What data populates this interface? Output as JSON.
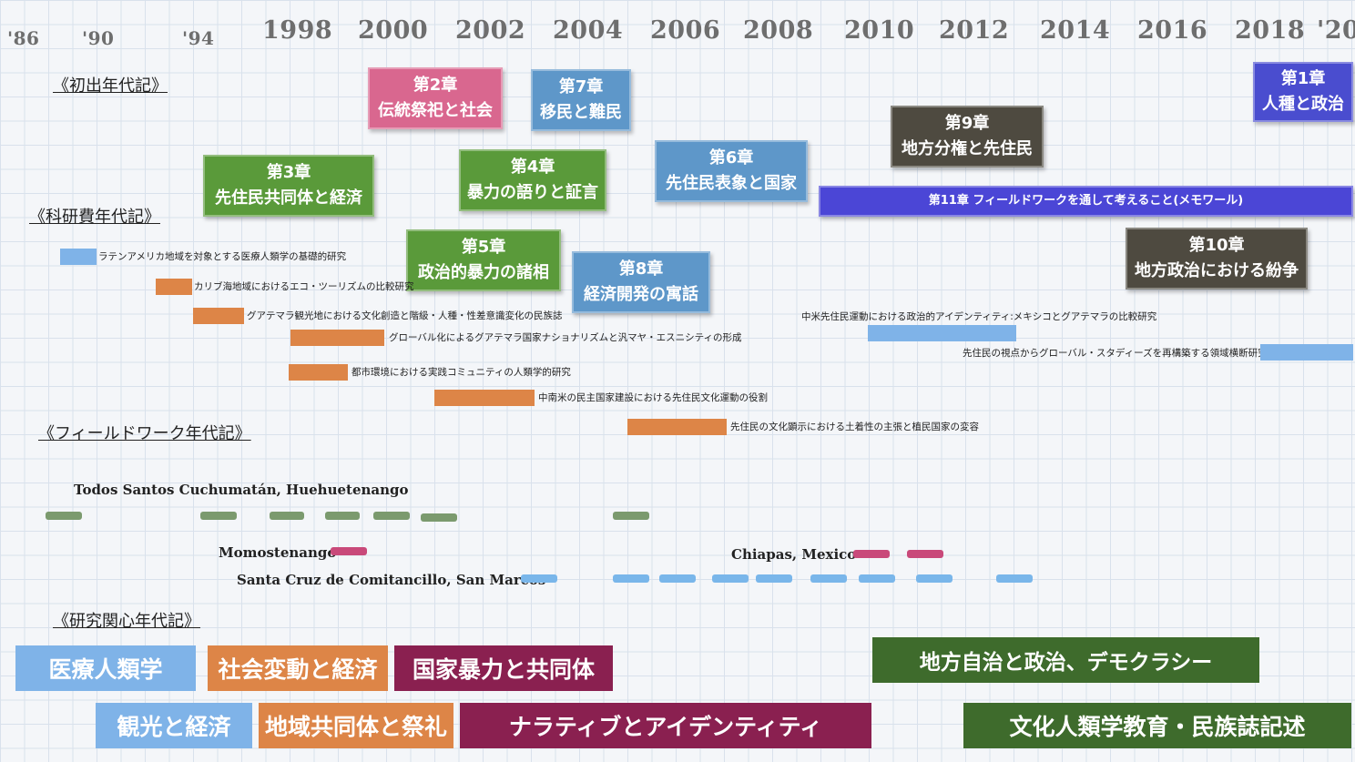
{
  "years": [
    {
      "label": "'86",
      "small": true
    },
    {
      "label": "'90",
      "small": true
    },
    {
      "label": "'94",
      "small": true
    },
    {
      "label": "1998"
    },
    {
      "label": "2000"
    },
    {
      "label": "2002"
    },
    {
      "label": "2004"
    },
    {
      "label": "2006"
    },
    {
      "label": "2008"
    },
    {
      "label": "2010"
    },
    {
      "label": "2012"
    },
    {
      "label": "2014"
    },
    {
      "label": "2016"
    },
    {
      "label": "2018"
    },
    {
      "label": "'20"
    }
  ],
  "sections": {
    "first_pub": "《初出年代記》",
    "grants": "《科研費年代記》",
    "fieldwork": "《フィールドワーク年代記》",
    "interests": "《研究関心年代記》"
  },
  "chapters": [
    {
      "line1": "第2章",
      "line2": "伝統祭祀と社会",
      "color": "#d9678f"
    },
    {
      "line1": "第7章",
      "line2": "移民と難民",
      "color": "#5e97c9"
    },
    {
      "line1": "第1章",
      "line2": "人種と政治",
      "color": "#4a4dcf"
    },
    {
      "line1": "第9章",
      "line2": "地方分権と先住民",
      "color": "#4e4a40"
    },
    {
      "line1": "第3章",
      "line2": "先住民共同体と経済",
      "color": "#5a9a3a"
    },
    {
      "line1": "第4章",
      "line2": "暴力の語りと証言",
      "color": "#5a9a3a"
    },
    {
      "line1": "第6章",
      "line2": "先住民表象と国家",
      "color": "#5e97c9"
    },
    {
      "line1": "第5章",
      "line2": "政治的暴力の諸相",
      "color": "#5a9a3a"
    },
    {
      "line1": "第8章",
      "line2": "経済開発の寓話",
      "color": "#5e97c9"
    },
    {
      "line1": "第10章",
      "line2": "地方政治における紛争",
      "color": "#4e4a40"
    }
  ],
  "chapter11": {
    "label": "第11章 フィールドワークを通して考えること(メモワール)",
    "color": "#4b46d6"
  },
  "grants": [
    {
      "label": "ラテンアメリカ地域を対象とする医療人類学の基礎的研究",
      "color": "#7fb3e8"
    },
    {
      "label": "カリブ海地域におけるエコ・ツーリズムの比較研究",
      "color": "#dd8547"
    },
    {
      "label": "グアテマラ観光地における文化創造と階級・人種・性差意識変化の民族誌",
      "color": "#dd8547"
    },
    {
      "label": "グローバル化によるグアテマラ国家ナショナリズムと汎マヤ・エスニシティの形成",
      "color": "#dd8547"
    },
    {
      "label": "都市環境における実践コミュニティの人類学的研究",
      "color": "#dd8547"
    },
    {
      "label": "中南米の民主国家建設における先住民文化運動の役割",
      "color": "#dd8547"
    },
    {
      "label": "先住民の文化顕示における土着性の主張と植民国家の変容",
      "color": "#dd8547"
    },
    {
      "label": "中米先住民運動における政治的アイデンティティ:メキシコとグアテマラの比較研究",
      "color": "#7fb3e8"
    },
    {
      "label": "先住民の視点からグローバル・スタディーズを再構築する領域横断研究",
      "color": "#7fb3e8"
    }
  ],
  "places": {
    "todos": "Todos Santos Cuchumatán, Huehuetenango",
    "momos": "Momostenango",
    "chiapas": "Chiapas, Mexico",
    "santacruz": "Santa Cruz de Comitancillo, San Marcos"
  },
  "mark_colors": {
    "green": "#7b9a6e",
    "pink": "#c9497a",
    "blue": "#79b6ea"
  },
  "interests": [
    {
      "label": "医療人類学",
      "color": "#7fb3e8"
    },
    {
      "label": "社会変動と経済",
      "color": "#dd8547"
    },
    {
      "label": "国家暴力と共同体",
      "color": "#8a2050"
    },
    {
      "label": "地方自治と政治、デモクラシー",
      "color": "#3e6b2c"
    },
    {
      "label": "観光と経済",
      "color": "#7fb3e8"
    },
    {
      "label": "地域共同体と祭礼",
      "color": "#dd8547"
    },
    {
      "label": "ナラティブとアイデンティティ",
      "color": "#8a2050"
    },
    {
      "label": "文化人類学教育・民族誌記述",
      "color": "#3e6b2c"
    }
  ]
}
